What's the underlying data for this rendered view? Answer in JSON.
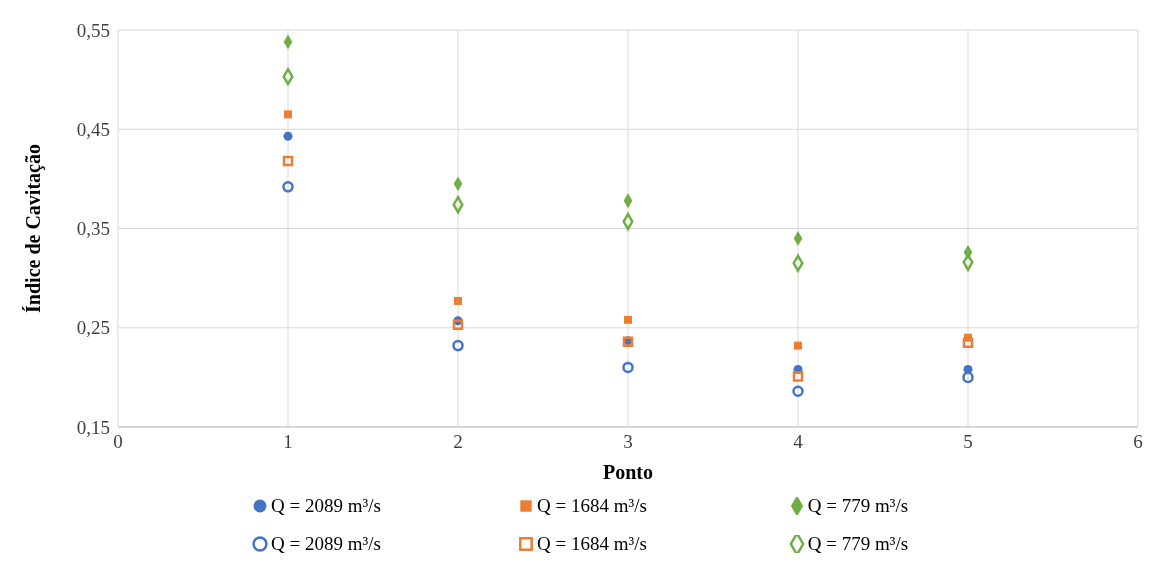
{
  "chart_data": {
    "type": "scatter",
    "xlabel": "Ponto",
    "ylabel": "Índice de Cavitação",
    "x": [
      1,
      2,
      3,
      4,
      5
    ],
    "xlim": [
      0,
      6
    ],
    "xticks": [
      0,
      1,
      2,
      3,
      4,
      5,
      6
    ],
    "ylim": [
      0.15,
      0.55
    ],
    "yticks": [
      {
        "value": 0.15,
        "label": "0,15"
      },
      {
        "value": 0.25,
        "label": "0,25"
      },
      {
        "value": 0.35,
        "label": "0,35"
      },
      {
        "value": 0.45,
        "label": "0,45"
      },
      {
        "value": 0.55,
        "label": "0,55"
      }
    ],
    "grid": true,
    "legend": "bottom",
    "series": [
      {
        "name": "Q = 2089 m³/s",
        "color": "#4472c4",
        "marker": "circle",
        "values": [
          0.443,
          0.257,
          0.237,
          0.208,
          0.208
        ]
      },
      {
        "name": "Q = 1684 m³/s",
        "color": "#ed7d31",
        "marker": "square",
        "values": [
          0.465,
          0.277,
          0.258,
          0.232,
          0.24
        ]
      },
      {
        "name": "Q = 779 m³/s",
        "color": "#70ad47",
        "marker": "diamond",
        "values": [
          0.538,
          0.395,
          0.378,
          0.34,
          0.326
        ]
      },
      {
        "name": "Q = 2089 m³/s",
        "color": "#4472c4",
        "marker": "circle",
        "values": [
          0.392,
          0.232,
          0.21,
          0.186,
          0.2
        ]
      },
      {
        "name": "Q = 1684 m³/s",
        "color": "#ed7d31",
        "marker": "square",
        "values": [
          0.418,
          0.253,
          0.236,
          0.201,
          0.235
        ]
      },
      {
        "name": "Q = 779 m³/s",
        "color": "#70ad47",
        "marker": "diamond",
        "values": [
          0.503,
          0.374,
          0.357,
          0.315,
          0.316
        ]
      }
    ]
  }
}
